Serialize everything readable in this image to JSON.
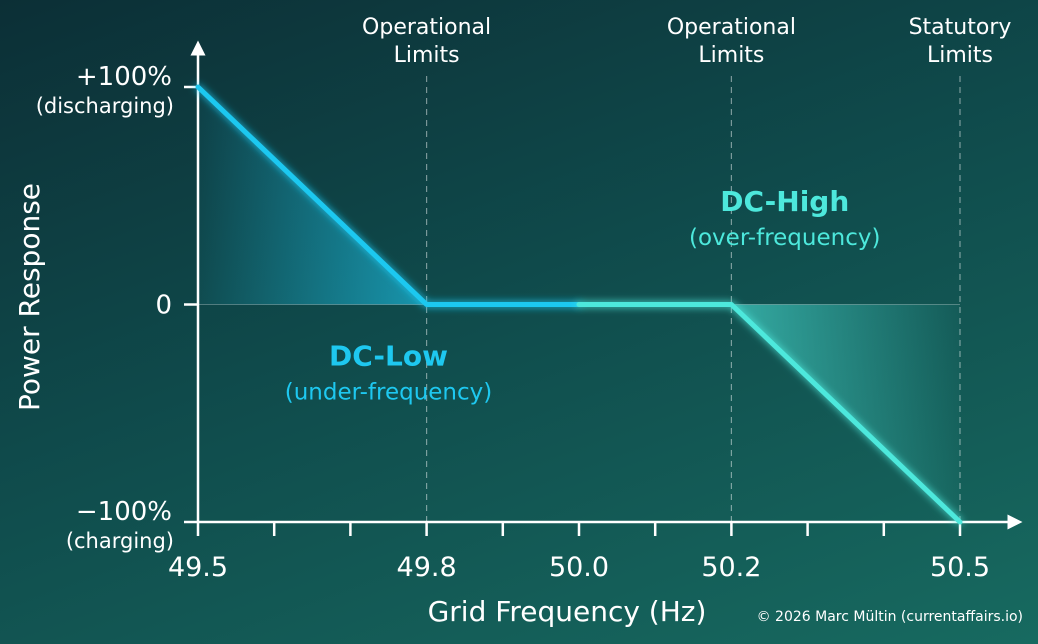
{
  "chart_data": {
    "type": "line",
    "xlabel": "Grid Frequency (Hz)",
    "ylabel": "Power Response",
    "xlim": [
      49.5,
      50.5
    ],
    "ylim": [
      -100,
      100
    ],
    "x_ticks": [
      49.5,
      49.8,
      50.0,
      50.2,
      50.5
    ],
    "x_tick_labels": [
      "49.5",
      "49.8",
      "50.0",
      "50.2",
      "50.5"
    ],
    "x_minor_ticks": [
      49.5,
      49.6,
      49.7,
      49.8,
      49.9,
      50.0,
      50.1,
      50.2,
      50.3,
      50.4,
      50.5
    ],
    "y_ticks": [
      {
        "value": 100,
        "label": "+100%",
        "sublabel": "(discharging)"
      },
      {
        "value": 0,
        "label": "0",
        "sublabel": ""
      },
      {
        "value": -100,
        "label": "−100%",
        "sublabel": "(charging)"
      }
    ],
    "series": [
      {
        "name": "DC-Low",
        "color": "#1ec8f0",
        "x": [
          49.5,
          49.8,
          50.0
        ],
        "y": [
          100,
          0,
          0
        ]
      },
      {
        "name": "DC-High",
        "color": "#4de8dc",
        "x": [
          50.0,
          50.2,
          50.5
        ],
        "y": [
          0,
          0,
          -100
        ]
      }
    ],
    "vlines": [
      {
        "x": 49.8,
        "label": [
          "Operational",
          "Limits"
        ]
      },
      {
        "x": 50.2,
        "label": [
          "Operational",
          "Limits"
        ]
      },
      {
        "x": 50.5,
        "label": [
          "Statutory",
          "Limits"
        ]
      }
    ],
    "annotations": [
      {
        "title": "DC-Low",
        "subtitle": "(under-frequency)",
        "color": "#1ec8f0",
        "x": 49.75,
        "y": -28
      },
      {
        "title": "DC-High",
        "subtitle": "(over-frequency)",
        "color": "#4de8dc",
        "x": 50.27,
        "y": 43
      }
    ]
  },
  "footer": {
    "copyright": "© 2026 Marc Mültin (currentaffairs.io)"
  }
}
